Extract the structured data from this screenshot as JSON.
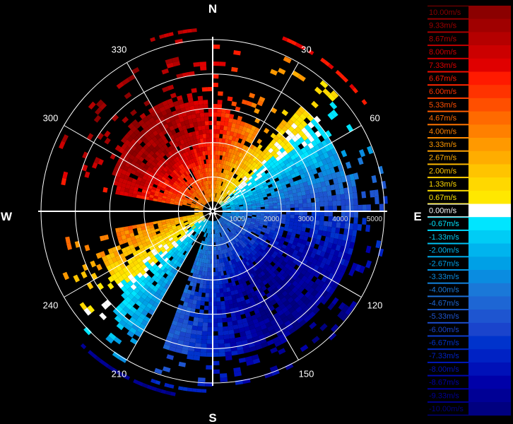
{
  "radar": {
    "cardinals": {
      "north": "N",
      "east": "E",
      "south": "S",
      "west": "W"
    },
    "bearings": [
      {
        "deg": 30,
        "label": "30"
      },
      {
        "deg": 60,
        "label": "60"
      },
      {
        "deg": 120,
        "label": "120"
      },
      {
        "deg": 150,
        "label": "150"
      },
      {
        "deg": 210,
        "label": "210"
      },
      {
        "deg": 240,
        "label": "240"
      },
      {
        "deg": 300,
        "label": "300"
      },
      {
        "deg": 330,
        "label": "330"
      }
    ],
    "range_rings": [
      "1000",
      "2000",
      "3000",
      "4000",
      "5000"
    ],
    "colors": {
      "background": "#000000",
      "grid": "#ffffff"
    }
  },
  "legend": {
    "items": [
      {
        "label": "10.00m/s",
        "value": 10.0,
        "color": "#8b0000"
      },
      {
        "label": "9.33m/s",
        "value": 9.33,
        "color": "#a00000"
      },
      {
        "label": "8.67m/s",
        "value": 8.67,
        "color": "#b50000"
      },
      {
        "label": "8.00m/s",
        "value": 8.0,
        "color": "#cc0000"
      },
      {
        "label": "7.33m/s",
        "value": 7.33,
        "color": "#e00000"
      },
      {
        "label": "6.67m/s",
        "value": 6.67,
        "color": "#ff1a00"
      },
      {
        "label": "6.00m/s",
        "value": 6.0,
        "color": "#ff3300"
      },
      {
        "label": "5.33m/s",
        "value": 5.33,
        "color": "#ff4f00"
      },
      {
        "label": "4.67m/s",
        "value": 4.67,
        "color": "#ff6a00"
      },
      {
        "label": "4.00m/s",
        "value": 4.0,
        "color": "#ff8000"
      },
      {
        "label": "3.33m/s",
        "value": 3.33,
        "color": "#ff9900"
      },
      {
        "label": "2.67m/s",
        "value": 2.67,
        "color": "#ffad00"
      },
      {
        "label": "2.00m/s",
        "value": 2.0,
        "color": "#ffc400"
      },
      {
        "label": "1.33m/s",
        "value": 1.33,
        "color": "#ffd800"
      },
      {
        "label": "0.67m/s",
        "value": 0.67,
        "color": "#ffe800"
      },
      {
        "label": "0.00m/s",
        "value": 0.0,
        "color": "#ffffff"
      },
      {
        "label": "-0.67m/s",
        "value": -0.67,
        "color": "#00e5ff"
      },
      {
        "label": "-1.33m/s",
        "value": -1.33,
        "color": "#00ccf5"
      },
      {
        "label": "-2.00m/s",
        "value": -2.0,
        "color": "#00b4ee"
      },
      {
        "label": "-2.67m/s",
        "value": -2.67,
        "color": "#00a0e6"
      },
      {
        "label": "-3.33m/s",
        "value": -3.33,
        "color": "#0a8ce0"
      },
      {
        "label": "-4.00m/s",
        "value": -4.0,
        "color": "#1a78d8"
      },
      {
        "label": "-4.67m/s",
        "value": -4.67,
        "color": "#1e66d4"
      },
      {
        "label": "-5.33m/s",
        "value": -5.33,
        "color": "#1e55d0"
      },
      {
        "label": "-6.00m/s",
        "value": -6.0,
        "color": "#1a44cc"
      },
      {
        "label": "-6.67m/s",
        "value": -6.67,
        "color": "#0033cc"
      },
      {
        "label": "-7.33m/s",
        "value": -7.33,
        "color": "#0022c4"
      },
      {
        "label": "-8.00m/s",
        "value": -8.0,
        "color": "#0011b8"
      },
      {
        "label": "-8.67m/s",
        "value": -8.67,
        "color": "#0000a8"
      },
      {
        "label": "-9.33m/s",
        "value": -9.33,
        "color": "#000095"
      },
      {
        "label": "-10.00m/s",
        "value": -10.0,
        "color": "#000080"
      }
    ]
  }
}
